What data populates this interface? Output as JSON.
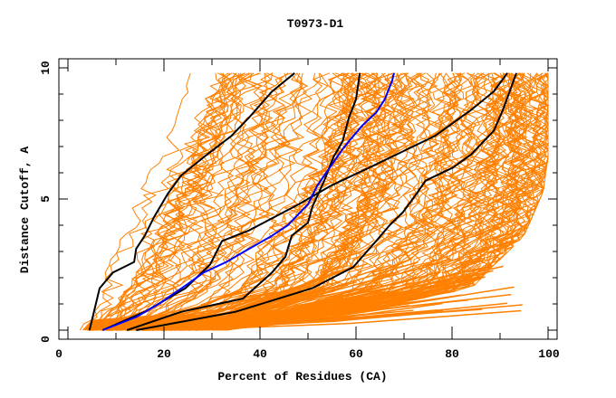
{
  "chart_data": {
    "type": "line",
    "title": "T0973-D1",
    "xlabel": "Percent of Residues (CA)",
    "ylabel": "Distance Cutoff, A",
    "xlim": [
      0,
      100
    ],
    "ylim": [
      0,
      10
    ],
    "x_ticks": [
      0,
      20,
      40,
      60,
      80,
      100
    ],
    "x_minor_ticks": [
      10,
      30,
      50,
      70,
      90
    ],
    "y_ticks": [
      0,
      5,
      10
    ],
    "y_minor_ticks": [
      1,
      2,
      3,
      4,
      6,
      7,
      8,
      9
    ],
    "grid": false,
    "legend": "none",
    "colors": {
      "background_models": "#ff8000",
      "highlight_black": "#000000",
      "highlight_blue": "#0000ff"
    },
    "background_models": {
      "color": "#ff8000",
      "count": 160,
      "description": "GDT curves of all submitted models",
      "left_envelope": [
        [
          2.5,
          0
        ],
        [
          8.5,
          2.6
        ],
        [
          15,
          5.3
        ],
        [
          22.6,
          8.1
        ],
        [
          25.5,
          9.8
        ]
      ],
      "right_envelope": [
        [
          33,
          0
        ],
        [
          60,
          0.7
        ],
        [
          84,
          1.6
        ],
        [
          95,
          3.6
        ],
        [
          99,
          5.3
        ],
        [
          100,
          6.6
        ],
        [
          100,
          9.8
        ]
      ]
    },
    "series": [
      {
        "name": "black-curve-1",
        "color": "#000000",
        "points": [
          [
            4.5,
            0
          ],
          [
            6.6,
            1.6
          ],
          [
            9.4,
            2.2
          ],
          [
            13.8,
            2.6
          ],
          [
            14.2,
            3.1
          ],
          [
            16.0,
            3.6
          ],
          [
            17.9,
            4.3
          ],
          [
            20.8,
            5.2
          ],
          [
            23.6,
            5.9
          ],
          [
            28.3,
            6.6
          ],
          [
            34.0,
            7.4
          ],
          [
            37.7,
            8.1
          ],
          [
            42.5,
            9.1
          ],
          [
            47.2,
            9.8
          ]
        ]
      },
      {
        "name": "black-curve-2",
        "color": "#000000",
        "points": [
          [
            7.2,
            0
          ],
          [
            16.0,
            0.7
          ],
          [
            24.5,
            1.6
          ],
          [
            29.6,
            2.5
          ],
          [
            32.1,
            3.4
          ],
          [
            37.7,
            3.8
          ],
          [
            48.1,
            4.8
          ],
          [
            54.7,
            5.5
          ],
          [
            65.1,
            6.4
          ],
          [
            76.4,
            7.4
          ],
          [
            84.0,
            8.4
          ],
          [
            88.7,
            9.1
          ],
          [
            91.5,
            9.8
          ]
        ]
      },
      {
        "name": "black-curve-3",
        "color": "#000000",
        "points": [
          [
            12.3,
            0
          ],
          [
            23.6,
            0.7
          ],
          [
            36.4,
            1.2
          ],
          [
            42.5,
            2.2
          ],
          [
            45.3,
            2.8
          ],
          [
            46.6,
            3.6
          ],
          [
            50.0,
            4.1
          ],
          [
            50.9,
            4.7
          ],
          [
            53.4,
            5.7
          ],
          [
            55.3,
            6.6
          ],
          [
            57.2,
            7.2
          ],
          [
            58.5,
            8.1
          ],
          [
            60.0,
            8.8
          ],
          [
            60.8,
            9.8
          ]
        ]
      },
      {
        "name": "black-curve-4",
        "color": "#000000",
        "points": [
          [
            14.2,
            0
          ],
          [
            34.9,
            0.7
          ],
          [
            50.9,
            1.6
          ],
          [
            59.4,
            2.4
          ],
          [
            64.2,
            3.4
          ],
          [
            67.0,
            4.0
          ],
          [
            69.8,
            4.5
          ],
          [
            72.6,
            5.2
          ],
          [
            74.5,
            5.7
          ],
          [
            80.2,
            6.2
          ],
          [
            84.0,
            6.7
          ],
          [
            88.7,
            7.6
          ],
          [
            90.6,
            8.4
          ],
          [
            93.4,
            9.8
          ]
        ]
      },
      {
        "name": "blue-curve",
        "color": "#0000ff",
        "points": [
          [
            7.2,
            0
          ],
          [
            14.2,
            0.5
          ],
          [
            18.9,
            1.0
          ],
          [
            24.5,
            1.7
          ],
          [
            28.3,
            2.2
          ],
          [
            33.0,
            2.6
          ],
          [
            37.7,
            3.1
          ],
          [
            42.5,
            3.6
          ],
          [
            45.8,
            4.0
          ],
          [
            50.0,
            4.8
          ],
          [
            51.9,
            5.5
          ],
          [
            53.4,
            5.9
          ],
          [
            55.3,
            6.4
          ],
          [
            57.2,
            6.9
          ],
          [
            58.5,
            7.2
          ],
          [
            61.3,
            7.8
          ],
          [
            64.2,
            8.3
          ],
          [
            66.0,
            8.8
          ],
          [
            67.5,
            9.5
          ],
          [
            67.9,
            9.8
          ]
        ]
      }
    ]
  }
}
